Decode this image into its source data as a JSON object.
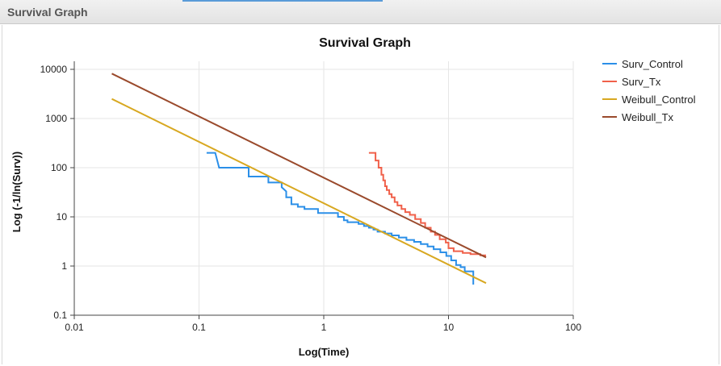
{
  "window": {
    "title": "Survival Graph"
  },
  "chart_data": {
    "type": "line",
    "title": "Survival Graph",
    "xlabel": "Log(Time)",
    "ylabel": "Log (-1/ln(Surv))",
    "x_scale": "log",
    "y_scale": "log",
    "xlim": [
      0.01,
      100
    ],
    "ylim": [
      0.1,
      10000
    ],
    "x_ticks": [
      0.01,
      0.1,
      1,
      10,
      100
    ],
    "x_tick_labels": [
      "0.01",
      "0.1",
      "1",
      "10",
      "100"
    ],
    "y_ticks": [
      0.1,
      1,
      10,
      100,
      1000,
      10000
    ],
    "y_tick_labels": [
      "0.1",
      "1",
      "10",
      "100",
      "1000",
      "10000"
    ],
    "grid": true,
    "legend_position": "right",
    "series": [
      {
        "name": "Surv_Control",
        "color": "#2b8fe8",
        "step": true,
        "points": [
          [
            0.115,
            200
          ],
          [
            0.135,
            200
          ],
          [
            0.145,
            100
          ],
          [
            0.25,
            100
          ],
          [
            0.25,
            66
          ],
          [
            0.36,
            66
          ],
          [
            0.36,
            50
          ],
          [
            0.46,
            50
          ],
          [
            0.46,
            40
          ],
          [
            0.5,
            33
          ],
          [
            0.5,
            25
          ],
          [
            0.55,
            25
          ],
          [
            0.55,
            18
          ],
          [
            0.62,
            18
          ],
          [
            0.62,
            16
          ],
          [
            0.7,
            16
          ],
          [
            0.7,
            14.5
          ],
          [
            0.9,
            14.5
          ],
          [
            0.9,
            12
          ],
          [
            1.3,
            12
          ],
          [
            1.3,
            10
          ],
          [
            1.45,
            10
          ],
          [
            1.45,
            8.5
          ],
          [
            1.55,
            8.5
          ],
          [
            1.55,
            7.8
          ],
          [
            1.9,
            7.8
          ],
          [
            1.9,
            7.2
          ],
          [
            2.1,
            7.2
          ],
          [
            2.1,
            6.5
          ],
          [
            2.3,
            6.5
          ],
          [
            2.3,
            6.0
          ],
          [
            2.5,
            6.0
          ],
          [
            2.5,
            5.5
          ],
          [
            2.7,
            5.5
          ],
          [
            2.7,
            5.0
          ],
          [
            3.1,
            5.0
          ],
          [
            3.1,
            4.6
          ],
          [
            3.5,
            4.6
          ],
          [
            3.5,
            4.2
          ],
          [
            4.0,
            4.2
          ],
          [
            4.0,
            3.8
          ],
          [
            4.6,
            3.8
          ],
          [
            4.6,
            3.4
          ],
          [
            5.3,
            3.4
          ],
          [
            5.3,
            3.1
          ],
          [
            6.0,
            3.1
          ],
          [
            6.0,
            2.8
          ],
          [
            6.8,
            2.8
          ],
          [
            6.8,
            2.5
          ],
          [
            7.6,
            2.5
          ],
          [
            7.6,
            2.2
          ],
          [
            8.6,
            2.2
          ],
          [
            8.6,
            1.9
          ],
          [
            9.6,
            1.9
          ],
          [
            9.6,
            1.6
          ],
          [
            10.5,
            1.6
          ],
          [
            10.5,
            1.3
          ],
          [
            11.5,
            1.3
          ],
          [
            11.5,
            1.05
          ],
          [
            12.5,
            1.05
          ],
          [
            12.5,
            0.95
          ],
          [
            13.5,
            0.95
          ],
          [
            13.5,
            0.78
          ],
          [
            15.8,
            0.78
          ],
          [
            15.8,
            0.42
          ]
        ]
      },
      {
        "name": "Surv_Tx",
        "color": "#f0604a",
        "step": true,
        "points": [
          [
            2.3,
            200
          ],
          [
            2.6,
            200
          ],
          [
            2.6,
            140
          ],
          [
            2.75,
            140
          ],
          [
            2.75,
            100
          ],
          [
            2.9,
            100
          ],
          [
            2.9,
            72
          ],
          [
            3.0,
            72
          ],
          [
            3.0,
            55
          ],
          [
            3.1,
            55
          ],
          [
            3.1,
            42
          ],
          [
            3.2,
            42
          ],
          [
            3.2,
            35
          ],
          [
            3.35,
            35
          ],
          [
            3.35,
            29
          ],
          [
            3.5,
            29
          ],
          [
            3.5,
            25
          ],
          [
            3.7,
            25
          ],
          [
            3.7,
            20
          ],
          [
            3.9,
            20
          ],
          [
            3.9,
            17
          ],
          [
            4.2,
            17
          ],
          [
            4.2,
            14.5
          ],
          [
            4.5,
            14.5
          ],
          [
            4.5,
            12.5
          ],
          [
            4.9,
            12.5
          ],
          [
            4.9,
            11
          ],
          [
            5.4,
            11
          ],
          [
            5.4,
            9
          ],
          [
            6.0,
            9
          ],
          [
            6.0,
            7.5
          ],
          [
            6.5,
            7.5
          ],
          [
            6.5,
            6.0
          ],
          [
            7.2,
            6.0
          ],
          [
            7.2,
            5.0
          ],
          [
            7.8,
            5.0
          ],
          [
            7.8,
            4.3
          ],
          [
            8.5,
            4.3
          ],
          [
            8.5,
            3.5
          ],
          [
            9.5,
            3.5
          ],
          [
            9.5,
            3.0
          ],
          [
            10.0,
            3.0
          ],
          [
            10.0,
            2.3
          ],
          [
            11.0,
            2.3
          ],
          [
            11.0,
            2.0
          ],
          [
            13.0,
            2.0
          ],
          [
            13.0,
            1.85
          ],
          [
            15.0,
            1.85
          ],
          [
            15.0,
            1.75
          ],
          [
            18.0,
            1.75
          ],
          [
            18.0,
            1.65
          ],
          [
            20.0,
            1.65
          ]
        ]
      },
      {
        "name": "Weibull_Control",
        "color": "#d8a821",
        "step": false,
        "points": [
          [
            0.02,
            2500
          ],
          [
            20.0,
            0.45
          ]
        ]
      },
      {
        "name": "Weibull_Tx",
        "color": "#9a4a2c",
        "step": false,
        "points": [
          [
            0.02,
            8200
          ],
          [
            20.0,
            1.5
          ]
        ]
      }
    ]
  }
}
